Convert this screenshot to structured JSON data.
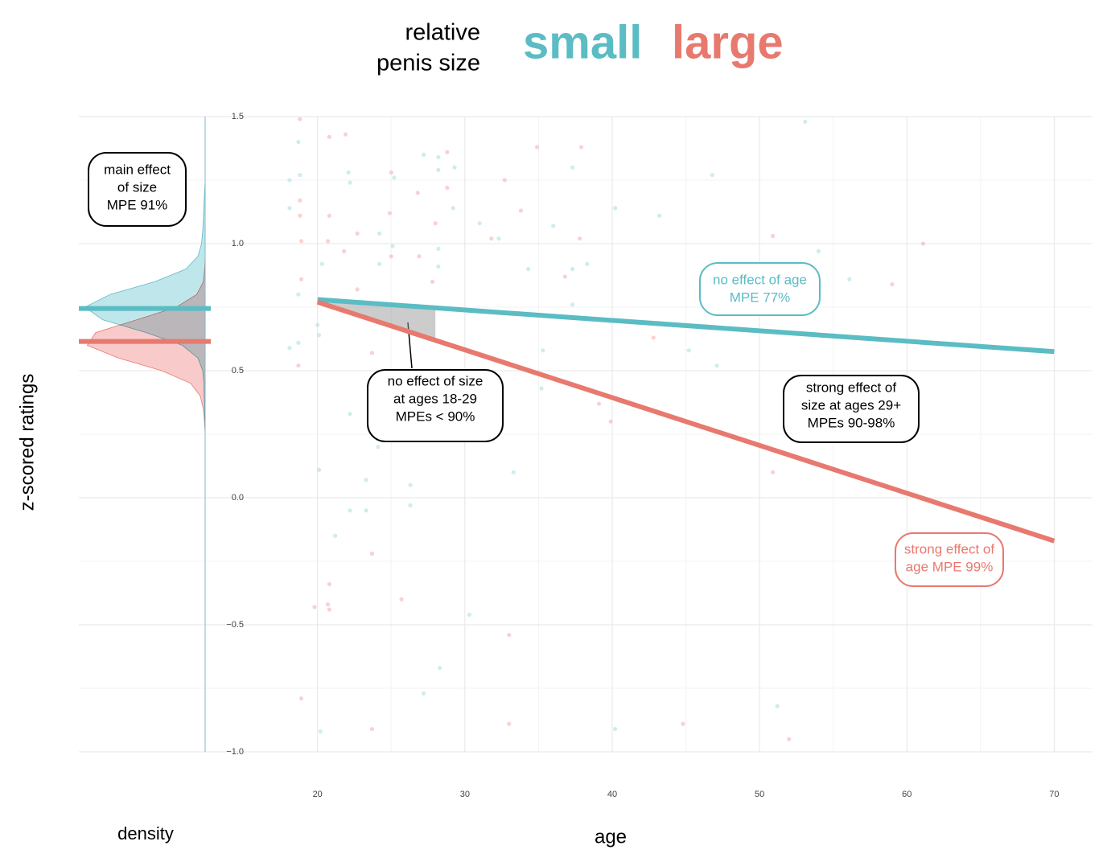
{
  "chart_data": [
    {
      "type": "density",
      "xlabel": "density",
      "xlim": [
        0,
        1.05
      ],
      "series": [
        {
          "color": "#5bbcc4",
          "fill": "#bfe6eb",
          "mean": 0.745,
          "y": [
            1.25,
            1.2,
            1.15,
            1.1,
            1.05,
            1.0,
            0.95,
            0.9,
            0.85,
            0.8,
            0.75,
            0.7,
            0.65,
            0.6,
            0.55,
            0.5,
            0.45,
            0.4,
            0.35,
            0.3,
            0.25
          ],
          "values": [
            0,
            0.005,
            0.01,
            0.015,
            0.02,
            0.03,
            0.06,
            0.16,
            0.42,
            0.79,
            1.0,
            0.85,
            0.49,
            0.19,
            0.06,
            0.02,
            0.01,
            0.008,
            0.005,
            0.003,
            0
          ]
        },
        {
          "color": "#e8796f",
          "fill": "#f9caca",
          "mean": 0.615,
          "y": [
            0.95,
            0.9,
            0.85,
            0.8,
            0.75,
            0.7,
            0.65,
            0.6,
            0.55,
            0.5,
            0.45,
            0.4,
            0.35,
            0.3,
            0.25
          ],
          "values": [
            0,
            0.004,
            0.015,
            0.07,
            0.24,
            0.57,
            0.91,
            0.98,
            0.72,
            0.36,
            0.12,
            0.04,
            0.015,
            0.005,
            0
          ]
        }
      ],
      "annotations": [
        {
          "lines": [
            "main effect",
            "of size",
            "MPE 91%"
          ],
          "color": "#000000"
        }
      ]
    },
    {
      "type": "scatter",
      "legend_title": [
        "relative",
        "penis size"
      ],
      "xlabel": "age",
      "ylabel": "z-scored ratings",
      "xlim": [
        13.3,
        72.6
      ],
      "ylim": [
        -1.0,
        1.5
      ],
      "xticks": [
        20,
        30,
        40,
        50,
        60,
        70
      ],
      "minor_xticks": [
        25,
        35,
        45,
        55,
        65
      ],
      "yticks": [
        {
          "value": -1.0,
          "label": "−1.0"
        },
        {
          "value": -0.5,
          "label": "−0.5"
        },
        {
          "value": 0,
          "label": "0.0"
        },
        0.5,
        {
          "value": 1.0,
          "label": "1.0"
        },
        1.5
      ],
      "minor_yticks": [
        -0.75,
        -0.25,
        0.25,
        0.75,
        1.25
      ],
      "grid": true,
      "shade_range": [
        20,
        28
      ],
      "series": [
        {
          "name": "small",
          "color": "#5bbcc4",
          "point_color": "#a8dde3",
          "x": [
            18.7,
            18.1,
            18.8,
            18.1,
            18.7,
            18.1,
            18.7,
            20.0,
            20.1,
            20.3,
            20.1,
            20.2,
            21.2,
            22.1,
            22.2,
            22.2,
            22.2,
            23.3,
            23.3,
            24.2,
            24.2,
            24.2,
            24.1,
            25.2,
            25.1,
            26.3,
            26.3,
            27.2,
            27.2,
            28.2,
            28.2,
            28.2,
            28.2,
            28.3,
            29.2,
            29.3,
            30.3,
            31.0,
            32.3,
            33.3,
            34.3,
            35.3,
            36.0,
            37.3,
            37.3,
            37.3,
            38.3,
            40.2,
            40.2,
            43.2,
            45.2,
            46.8,
            47.1,
            53.1,
            54.0,
            56.1,
            51.2,
            35.2
          ],
          "values": [
            1.4,
            1.25,
            1.27,
            1.14,
            0.8,
            0.59,
            0.61,
            0.68,
            0.64,
            0.92,
            0.11,
            -0.92,
            -0.15,
            1.28,
            1.24,
            -0.05,
            0.33,
            -0.05,
            0.07,
            1.04,
            0.92,
            0.25,
            0.2,
            1.26,
            0.99,
            0.05,
            -0.03,
            1.35,
            -0.77,
            1.34,
            1.29,
            0.98,
            0.91,
            -0.67,
            1.14,
            1.3,
            -0.46,
            1.08,
            1.02,
            0.1,
            0.9,
            0.58,
            1.07,
            1.3,
            0.76,
            0.9,
            0.92,
            1.14,
            -0.91,
            1.11,
            0.58,
            1.27,
            0.52,
            1.48,
            0.97,
            0.86,
            -0.82,
            0.43
          ],
          "fit": {
            "x": [
              20,
              70
            ],
            "values": [
              0.78,
              0.575
            ]
          }
        },
        {
          "name": "large",
          "color": "#e8796f",
          "point_color": "#f5abab",
          "x": [
            18.8,
            18.8,
            18.9,
            18.8,
            18.9,
            18.7,
            18.9,
            20.8,
            21.9,
            20.8,
            20.7,
            21.8,
            22.7,
            22.7,
            23.7,
            23.7,
            25.0,
            24.9,
            25.0,
            26.8,
            26.9,
            27.8,
            28.8,
            28.8,
            28.0,
            20.8,
            20.7,
            19.8,
            20.8,
            25.7,
            23.7,
            31.8,
            32.7,
            33.8,
            34.9,
            37.9,
            36.8,
            37.8,
            39.1,
            39.9,
            33.0,
            33.0,
            42.8,
            44.8,
            50.9,
            50.9,
            52.0,
            59.0,
            61.1
          ],
          "values": [
            1.49,
            1.17,
            0.86,
            1.11,
            1.01,
            0.52,
            -0.79,
            1.42,
            1.43,
            1.11,
            1.01,
            0.97,
            1.04,
            0.82,
            0.57,
            -0.22,
            1.28,
            1.12,
            0.95,
            1.2,
            0.95,
            0.85,
            1.36,
            1.22,
            1.08,
            -0.34,
            -0.42,
            -0.43,
            -0.44,
            -0.4,
            -0.91,
            1.02,
            1.25,
            1.13,
            1.38,
            1.38,
            0.87,
            1.02,
            0.37,
            0.3,
            -0.54,
            -0.89,
            0.63,
            -0.89,
            1.03,
            0.1,
            -0.95,
            0.84,
            1.0
          ],
          "fit": {
            "x": [
              20,
              70
            ],
            "values": [
              0.77,
              -0.17
            ]
          }
        }
      ],
      "annotations": [
        {
          "lines": [
            "no effect of age",
            "MPE 77%"
          ],
          "color": "#5bbcc4"
        },
        {
          "lines": [
            "no effect of size",
            "at ages 18-29",
            "MPEs < 90%"
          ],
          "color": "#000000"
        },
        {
          "lines": [
            "strong effect of",
            "size at ages 29+",
            "MPEs 90-98%"
          ],
          "color": "#000000"
        },
        {
          "lines": [
            "strong effect of",
            "age MPE 99%"
          ],
          "color": "#e8796f"
        }
      ]
    }
  ]
}
